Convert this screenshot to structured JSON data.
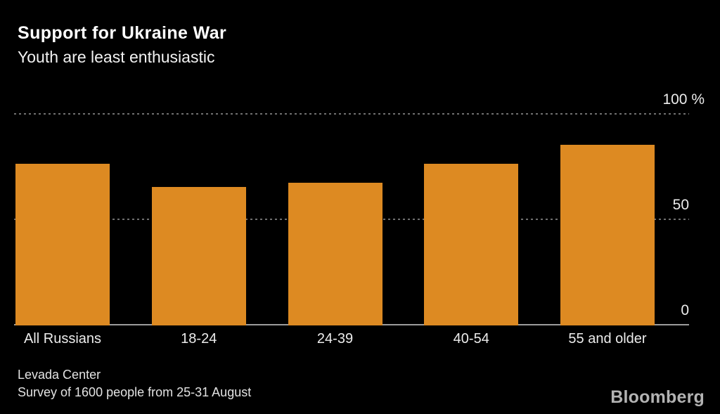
{
  "header": {
    "title": "Support for Ukraine War",
    "subtitle": "Youth are least enthusiastic"
  },
  "axis": {
    "tick_top": "100 %",
    "tick_mid": "50",
    "tick_zero": "0"
  },
  "footer": {
    "source_line1": "Levada Center",
    "source_line2": "Survey of 1600 people from 25-31 August",
    "brand": "Bloomberg"
  },
  "colors": {
    "background": "#000000",
    "bar": "#DD8A22",
    "grid": "#707070",
    "axis_line": "#9C9C9C",
    "title_text": "#FFFFFF",
    "label_text": "#ECECEC",
    "brand_text": "#B3B3B3"
  },
  "chart_data": {
    "type": "bar",
    "title": "Support for Ukraine War",
    "subtitle": "Youth are least enthusiastic",
    "categories": [
      "All Russians",
      "18-24",
      "24-39",
      "40-54",
      "55 and older"
    ],
    "values": [
      76,
      65,
      67,
      76,
      85
    ],
    "xlabel": "",
    "ylabel": "%",
    "ylim": [
      0,
      100
    ],
    "yticks": [
      0,
      50,
      100
    ],
    "grid": "horizontal-dotted",
    "legend": "none",
    "bar_color": "#DD8A22",
    "source": "Levada Center, Survey of 1600 people from 25-31 August"
  }
}
